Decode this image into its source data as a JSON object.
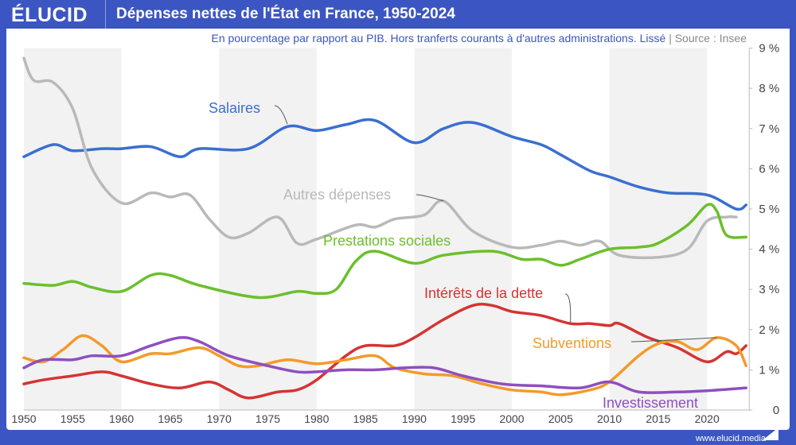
{
  "header": {
    "logo": "ÉLUCID",
    "title": "Dépenses nettes de l'État en France, 1950-2024"
  },
  "subtitle": "En pourcentage par rapport au PIB. Hors tranferts courants à d'autres administrations. Lissé",
  "source_sep": "|",
  "source": "Source : Insee",
  "footer": "www.elucid.media",
  "colors": {
    "brand": "#3b56c2"
  },
  "chart_data": {
    "type": "line",
    "xlim": [
      1950,
      2024
    ],
    "ylim": [
      0,
      9
    ],
    "x_ticks": [
      "1950",
      "1955",
      "1960",
      "1965",
      "1970",
      "1975",
      "1980",
      "1985",
      "1990",
      "1995",
      "2000",
      "2005",
      "2010",
      "2015",
      "2020"
    ],
    "y_ticks": [
      "0",
      "1 %",
      "2 %",
      "3 %",
      "4 %",
      "5 %",
      "6 %",
      "7 %",
      "8 %",
      "9 %"
    ],
    "y_axis_side": "right",
    "shaded_decades": [
      [
        1950,
        1960
      ],
      [
        1970,
        1980
      ],
      [
        1990,
        2000
      ],
      [
        2010,
        2020
      ]
    ],
    "series": [
      {
        "name": "Salaires",
        "color": "#3a6fd0",
        "points": [
          [
            1950,
            6.3
          ],
          [
            1953,
            6.6
          ],
          [
            1955,
            6.45
          ],
          [
            1958,
            6.5
          ],
          [
            1960,
            6.5
          ],
          [
            1963,
            6.55
          ],
          [
            1966,
            6.3
          ],
          [
            1968,
            6.5
          ],
          [
            1973,
            6.5
          ],
          [
            1977,
            7.05
          ],
          [
            1980,
            6.95
          ],
          [
            1983,
            7.1
          ],
          [
            1986,
            7.2
          ],
          [
            1990,
            6.65
          ],
          [
            1993,
            7.0
          ],
          [
            1996,
            7.15
          ],
          [
            2000,
            6.8
          ],
          [
            2003,
            6.6
          ],
          [
            2005,
            6.35
          ],
          [
            2008,
            5.95
          ],
          [
            2010,
            5.8
          ],
          [
            2013,
            5.55
          ],
          [
            2016,
            5.4
          ],
          [
            2020,
            5.35
          ],
          [
            2023,
            5.0
          ],
          [
            2024,
            5.1
          ]
        ]
      },
      {
        "name": "Autres dépenses",
        "color": "#b9b9b9",
        "points": [
          [
            1950,
            8.75
          ],
          [
            1951,
            8.2
          ],
          [
            1953,
            8.15
          ],
          [
            1955,
            7.5
          ],
          [
            1957,
            6.0
          ],
          [
            1960,
            5.15
          ],
          [
            1963,
            5.4
          ],
          [
            1965,
            5.3
          ],
          [
            1967,
            5.35
          ],
          [
            1969,
            4.75
          ],
          [
            1971,
            4.3
          ],
          [
            1973,
            4.4
          ],
          [
            1976,
            4.8
          ],
          [
            1978,
            4.15
          ],
          [
            1980,
            4.25
          ],
          [
            1984,
            4.6
          ],
          [
            1986,
            4.55
          ],
          [
            1988,
            4.75
          ],
          [
            1991,
            4.85
          ],
          [
            1993,
            5.2
          ],
          [
            1996,
            4.45
          ],
          [
            2000,
            4.05
          ],
          [
            2003,
            4.1
          ],
          [
            2005,
            4.2
          ],
          [
            2007,
            4.1
          ],
          [
            2009,
            4.2
          ],
          [
            2011,
            3.85
          ],
          [
            2015,
            3.8
          ],
          [
            2018,
            4.0
          ],
          [
            2020,
            4.7
          ],
          [
            2022,
            4.8
          ],
          [
            2023,
            4.8
          ]
        ]
      },
      {
        "name": "Prestations sociales",
        "color": "#6cbf2c",
        "points": [
          [
            1950,
            3.15
          ],
          [
            1953,
            3.1
          ],
          [
            1955,
            3.2
          ],
          [
            1957,
            3.05
          ],
          [
            1960,
            2.95
          ],
          [
            1963,
            3.35
          ],
          [
            1965,
            3.35
          ],
          [
            1968,
            3.1
          ],
          [
            1974,
            2.8
          ],
          [
            1978,
            2.95
          ],
          [
            1980,
            2.9
          ],
          [
            1982,
            3.0
          ],
          [
            1984,
            3.7
          ],
          [
            1986,
            3.95
          ],
          [
            1990,
            3.65
          ],
          [
            1993,
            3.85
          ],
          [
            1998,
            3.95
          ],
          [
            2001,
            3.75
          ],
          [
            2003,
            3.75
          ],
          [
            2005,
            3.6
          ],
          [
            2007,
            3.75
          ],
          [
            2010,
            4.0
          ],
          [
            2013,
            4.05
          ],
          [
            2015,
            4.15
          ],
          [
            2018,
            4.6
          ],
          [
            2020,
            5.1
          ],
          [
            2021,
            4.95
          ],
          [
            2022,
            4.35
          ],
          [
            2024,
            4.3
          ]
        ]
      },
      {
        "name": "Intérêts de la dette",
        "color": "#d63333",
        "points": [
          [
            1950,
            0.65
          ],
          [
            1952,
            0.75
          ],
          [
            1955,
            0.85
          ],
          [
            1958,
            0.95
          ],
          [
            1960,
            0.85
          ],
          [
            1963,
            0.65
          ],
          [
            1966,
            0.55
          ],
          [
            1969,
            0.7
          ],
          [
            1971,
            0.5
          ],
          [
            1973,
            0.3
          ],
          [
            1976,
            0.45
          ],
          [
            1978,
            0.5
          ],
          [
            1980,
            0.75
          ],
          [
            1983,
            1.35
          ],
          [
            1985,
            1.6
          ],
          [
            1988,
            1.6
          ],
          [
            1990,
            1.8
          ],
          [
            1993,
            2.25
          ],
          [
            1996,
            2.6
          ],
          [
            1998,
            2.6
          ],
          [
            2000,
            2.45
          ],
          [
            2003,
            2.35
          ],
          [
            2006,
            2.15
          ],
          [
            2008,
            2.15
          ],
          [
            2010,
            2.1
          ],
          [
            2011,
            2.15
          ],
          [
            2014,
            1.8
          ],
          [
            2017,
            1.55
          ],
          [
            2020,
            1.2
          ],
          [
            2022,
            1.45
          ],
          [
            2023,
            1.4
          ],
          [
            2024,
            1.6
          ]
        ]
      },
      {
        "name": "Subventions",
        "color": "#f39a2a",
        "points": [
          [
            1950,
            1.3
          ],
          [
            1952,
            1.2
          ],
          [
            1954,
            1.5
          ],
          [
            1956,
            1.85
          ],
          [
            1958,
            1.6
          ],
          [
            1960,
            1.2
          ],
          [
            1963,
            1.4
          ],
          [
            1965,
            1.4
          ],
          [
            1968,
            1.55
          ],
          [
            1970,
            1.35
          ],
          [
            1972,
            1.1
          ],
          [
            1974,
            1.1
          ],
          [
            1977,
            1.25
          ],
          [
            1980,
            1.15
          ],
          [
            1983,
            1.25
          ],
          [
            1986,
            1.35
          ],
          [
            1988,
            1.05
          ],
          [
            1991,
            0.9
          ],
          [
            1994,
            0.85
          ],
          [
            1997,
            0.65
          ],
          [
            2000,
            0.5
          ],
          [
            2003,
            0.45
          ],
          [
            2005,
            0.38
          ],
          [
            2008,
            0.5
          ],
          [
            2010,
            0.7
          ],
          [
            2013,
            1.35
          ],
          [
            2015,
            1.65
          ],
          [
            2017,
            1.7
          ],
          [
            2019,
            1.5
          ],
          [
            2021,
            1.8
          ],
          [
            2023,
            1.6
          ],
          [
            2024,
            1.1
          ]
        ]
      },
      {
        "name": "Investissement",
        "color": "#8e4fc0",
        "points": [
          [
            1950,
            1.05
          ],
          [
            1952,
            1.25
          ],
          [
            1955,
            1.25
          ],
          [
            1957,
            1.35
          ],
          [
            1960,
            1.35
          ],
          [
            1963,
            1.6
          ],
          [
            1966,
            1.8
          ],
          [
            1968,
            1.7
          ],
          [
            1971,
            1.35
          ],
          [
            1975,
            1.1
          ],
          [
            1978,
            0.95
          ],
          [
            1980,
            0.95
          ],
          [
            1983,
            1.0
          ],
          [
            1986,
            1.0
          ],
          [
            1989,
            1.05
          ],
          [
            1992,
            1.05
          ],
          [
            1995,
            0.85
          ],
          [
            1999,
            0.65
          ],
          [
            2003,
            0.6
          ],
          [
            2007,
            0.55
          ],
          [
            2010,
            0.7
          ],
          [
            2013,
            0.45
          ],
          [
            2017,
            0.45
          ],
          [
            2020,
            0.48
          ],
          [
            2024,
            0.55
          ]
        ]
      }
    ]
  }
}
